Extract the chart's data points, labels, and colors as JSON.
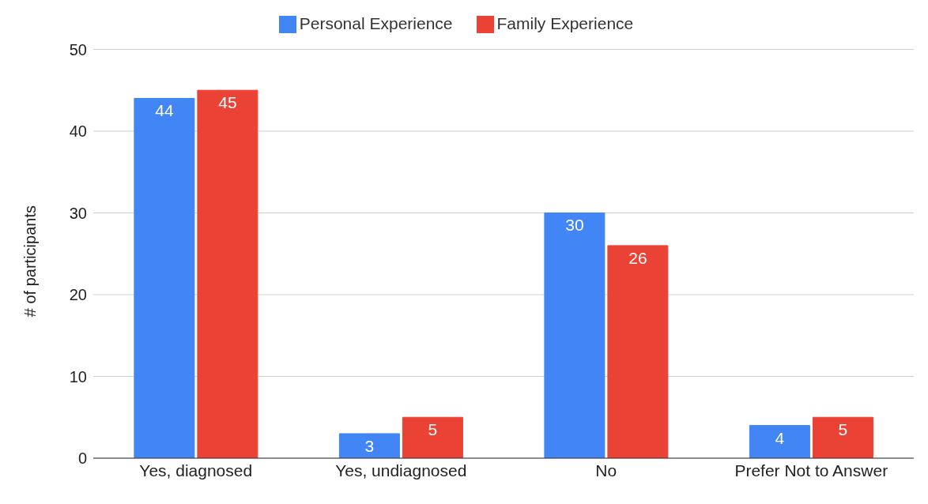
{
  "chart_data": {
    "type": "bar",
    "ylabel": "# of participants",
    "categories": [
      "Yes, diagnosed",
      "Yes, undiagnosed",
      "No",
      "Prefer Not to Answer"
    ],
    "series": [
      {
        "name": "Personal Experience",
        "color": "#4285f4",
        "values": [
          44,
          3,
          30,
          4
        ]
      },
      {
        "name": "Family Experience",
        "color": "#ea4335",
        "values": [
          45,
          5,
          26,
          5
        ]
      }
    ],
    "ylim": [
      0,
      50
    ],
    "yticks": [
      0,
      10,
      20,
      30,
      40,
      50
    ],
    "grid": "y",
    "legend": "top",
    "data_labels": true
  }
}
